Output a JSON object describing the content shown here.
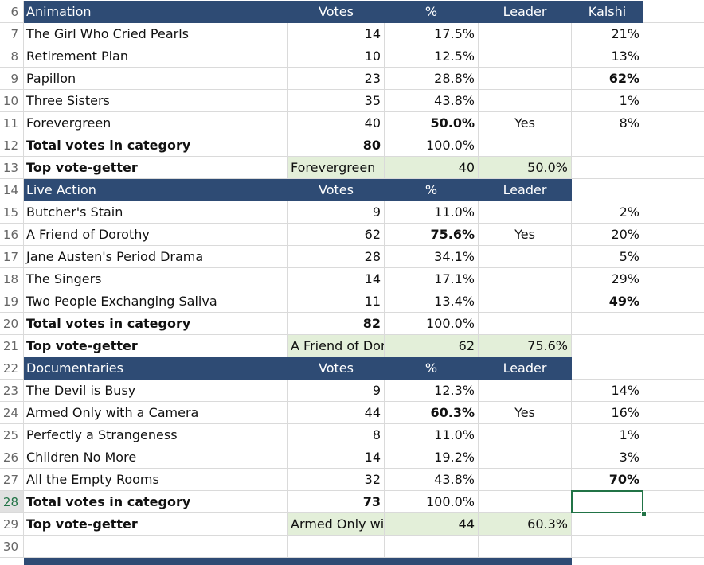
{
  "rows": [
    {
      "number": 6,
      "style": "header",
      "cells": [
        "Animation",
        "Votes",
        "%",
        "Leader",
        "Kalshi"
      ]
    },
    {
      "number": 7,
      "cells": [
        "The Girl Who Cried Pearls",
        14,
        "17.5%",
        null,
        "21%"
      ]
    },
    {
      "number": 8,
      "cells": [
        "Retirement Plan",
        10,
        "12.5%",
        null,
        "13%"
      ]
    },
    {
      "number": 9,
      "bold": [
        4
      ],
      "cells": [
        "Papillon",
        23,
        "28.8%",
        null,
        "62%"
      ]
    },
    {
      "number": 10,
      "cells": [
        "Three Sisters",
        35,
        "43.8%",
        null,
        "1%"
      ]
    },
    {
      "number": 11,
      "bold": [
        2
      ],
      "cells": [
        "Forevergreen",
        40,
        "50.0%",
        "Yes",
        "8%"
      ]
    },
    {
      "number": 12,
      "bold": [
        0,
        1
      ],
      "cells": [
        "Total votes in category",
        80,
        "100.0%",
        null,
        null
      ]
    },
    {
      "number": 13,
      "style": "top",
      "bold": [
        0
      ],
      "cells": [
        "Top vote-getter",
        "Forevergreen",
        40,
        "50.0%",
        null
      ]
    },
    {
      "number": 14,
      "style": "header",
      "cells": [
        "Live Action",
        "Votes",
        "%",
        "Leader",
        null
      ]
    },
    {
      "number": 15,
      "cells": [
        "Butcher's Stain",
        9,
        "11.0%",
        null,
        "2%"
      ]
    },
    {
      "number": 16,
      "bold": [
        2
      ],
      "cells": [
        "A Friend of Dorothy",
        62,
        "75.6%",
        "Yes",
        "20%"
      ]
    },
    {
      "number": 17,
      "cells": [
        "Jane Austen's Period Drama",
        28,
        "34.1%",
        null,
        "5%"
      ]
    },
    {
      "number": 18,
      "cells": [
        "The Singers",
        14,
        "17.1%",
        null,
        "29%"
      ]
    },
    {
      "number": 19,
      "bold": [
        4
      ],
      "cells": [
        "Two People Exchanging Saliva",
        11,
        "13.4%",
        null,
        "49%"
      ]
    },
    {
      "number": 20,
      "bold": [
        0,
        1
      ],
      "cells": [
        "Total votes in category",
        82,
        "100.0%",
        null,
        null
      ]
    },
    {
      "number": 21,
      "style": "top",
      "bold": [
        0
      ],
      "cells": [
        "Top vote-getter",
        "A Friend of Dorothy",
        62,
        "75.6%",
        null
      ]
    },
    {
      "number": 22,
      "style": "header",
      "cells": [
        "Documentaries",
        "Votes",
        "%",
        "Leader",
        null
      ]
    },
    {
      "number": 23,
      "cells": [
        "The Devil is Busy",
        9,
        "12.3%",
        null,
        "14%"
      ]
    },
    {
      "number": 24,
      "bold": [
        2
      ],
      "cells": [
        "Armed Only with a Camera",
        44,
        "60.3%",
        "Yes",
        "16%"
      ]
    },
    {
      "number": 25,
      "cells": [
        "Perfectly a Strangeness",
        8,
        "11.0%",
        null,
        "1%"
      ]
    },
    {
      "number": 26,
      "cells": [
        "Children No More",
        14,
        "19.2%",
        null,
        "3%"
      ]
    },
    {
      "number": 27,
      "bold": [
        4
      ],
      "cells": [
        "All the Empty Rooms",
        32,
        "43.8%",
        null,
        "70%"
      ]
    },
    {
      "number": 28,
      "bold": [
        0,
        1
      ],
      "cells": [
        "Total votes in category",
        73,
        "100.0%",
        null,
        null
      ]
    },
    {
      "number": 29,
      "style": "top",
      "bold": [
        0
      ],
      "cells": [
        "Top vote-getter",
        "Armed Only with a Camera",
        44,
        "60.3%",
        null
      ]
    },
    {
      "number": 30,
      "cells": [
        null,
        null,
        null,
        null,
        null
      ]
    }
  ]
}
